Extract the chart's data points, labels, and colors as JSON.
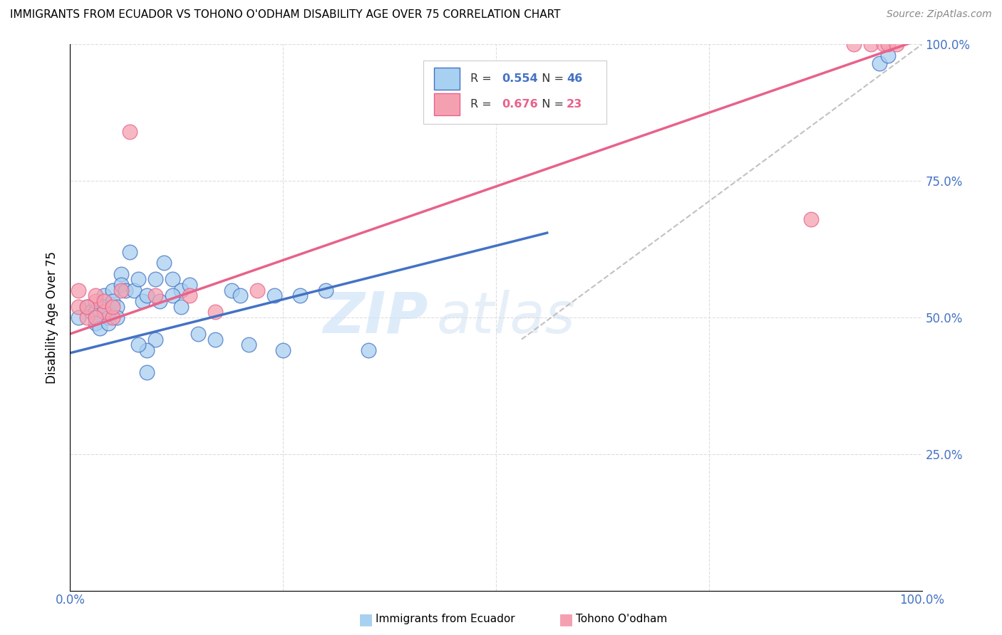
{
  "title": "IMMIGRANTS FROM ECUADOR VS TOHONO O'ODHAM DISABILITY AGE OVER 75 CORRELATION CHART",
  "source": "Source: ZipAtlas.com",
  "ylabel": "Disability Age Over 75",
  "xlim": [
    0,
    1.0
  ],
  "ylim": [
    0,
    1.0
  ],
  "color_blue": "#A8D0F0",
  "color_pink": "#F5A0B0",
  "color_blue_line": "#4472C4",
  "color_pink_line": "#E8628A",
  "color_gray_line": "#BBBBBB",
  "watermark_zip": "ZIP",
  "watermark_atlas": "atlas",
  "blue_x": [
    0.01,
    0.02,
    0.025,
    0.03,
    0.03,
    0.035,
    0.04,
    0.04,
    0.045,
    0.045,
    0.05,
    0.05,
    0.055,
    0.055,
    0.06,
    0.06,
    0.065,
    0.07,
    0.075,
    0.08,
    0.085,
    0.09,
    0.1,
    0.105,
    0.11,
    0.12,
    0.13,
    0.14,
    0.15,
    0.17,
    0.19,
    0.21,
    0.24,
    0.12,
    0.13,
    0.27,
    0.1,
    0.2,
    0.25,
    0.3,
    0.09,
    0.35,
    0.09,
    0.08,
    0.95,
    0.96
  ],
  "blue_y": [
    0.5,
    0.52,
    0.51,
    0.51,
    0.49,
    0.48,
    0.54,
    0.52,
    0.5,
    0.49,
    0.55,
    0.53,
    0.52,
    0.5,
    0.58,
    0.56,
    0.55,
    0.62,
    0.55,
    0.57,
    0.53,
    0.54,
    0.57,
    0.53,
    0.6,
    0.57,
    0.55,
    0.56,
    0.47,
    0.46,
    0.55,
    0.45,
    0.54,
    0.54,
    0.52,
    0.54,
    0.46,
    0.54,
    0.44,
    0.55,
    0.44,
    0.44,
    0.4,
    0.45,
    0.965,
    0.98
  ],
  "pink_x": [
    0.01,
    0.02,
    0.03,
    0.03,
    0.04,
    0.05,
    0.06,
    0.07,
    0.1,
    0.14,
    0.17,
    0.22,
    0.01,
    0.02,
    0.03,
    0.04,
    0.05,
    0.87,
    0.92,
    0.94,
    0.955,
    0.96,
    0.97
  ],
  "pink_y": [
    0.52,
    0.5,
    0.53,
    0.54,
    0.51,
    0.5,
    0.55,
    0.84,
    0.54,
    0.54,
    0.51,
    0.55,
    0.55,
    0.52,
    0.5,
    0.53,
    0.52,
    0.68,
    1.0,
    1.0,
    1.0,
    1.0,
    1.0
  ],
  "blue_line_x": [
    0.0,
    0.56
  ],
  "blue_line_y": [
    0.435,
    0.655
  ],
  "pink_line_x": [
    0.0,
    1.0
  ],
  "pink_line_y": [
    0.47,
    1.01
  ],
  "gray_line_x": [
    0.53,
    1.0
  ],
  "gray_line_y": [
    0.46,
    1.0
  ]
}
